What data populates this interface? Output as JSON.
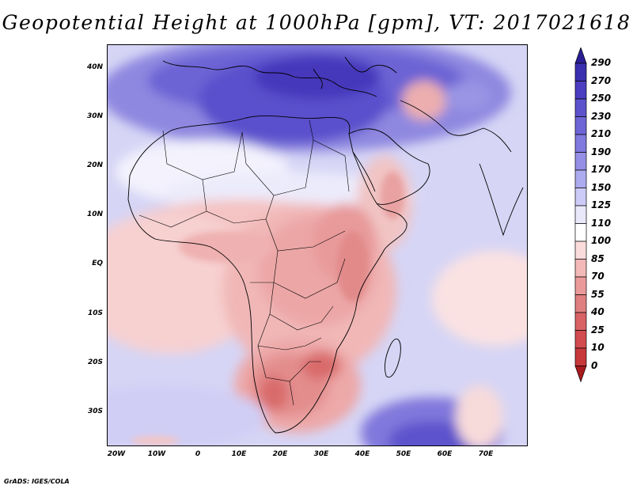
{
  "title": "Geopotential Height at 1000hPa [gpm], VT: 2017021618",
  "credit": "GrADS: IGES/COLA",
  "lat_labels": [
    "40N",
    "30N",
    "20N",
    "10N",
    "EQ",
    "10S",
    "20S",
    "30S"
  ],
  "lon_labels": [
    "20W",
    "10W",
    "0",
    "10E",
    "20E",
    "30E",
    "40E",
    "50E",
    "60E",
    "70E"
  ],
  "colorbar": {
    "levels": [
      "290",
      "270",
      "250",
      "230",
      "210",
      "190",
      "170",
      "150",
      "125",
      "110",
      "100",
      "85",
      "70",
      "55",
      "40",
      "25",
      "10",
      "0"
    ],
    "colors": [
      "#2a1f96",
      "#3a2fae",
      "#4b3ec0",
      "#5c52cc",
      "#6e66d6",
      "#8079de",
      "#958fe6",
      "#adabef",
      "#cccaf6",
      "#e9e8fb",
      "#ffffff",
      "#fbdcdc",
      "#f3b8b8",
      "#eb9a9a",
      "#e07f80",
      "#d86264",
      "#d24b4e",
      "#c7383a",
      "#a81a1e"
    ]
  },
  "map": {
    "region": "Africa and Middle East",
    "lon_range": [
      -22,
      80
    ],
    "lat_range": [
      -37,
      45
    ]
  }
}
